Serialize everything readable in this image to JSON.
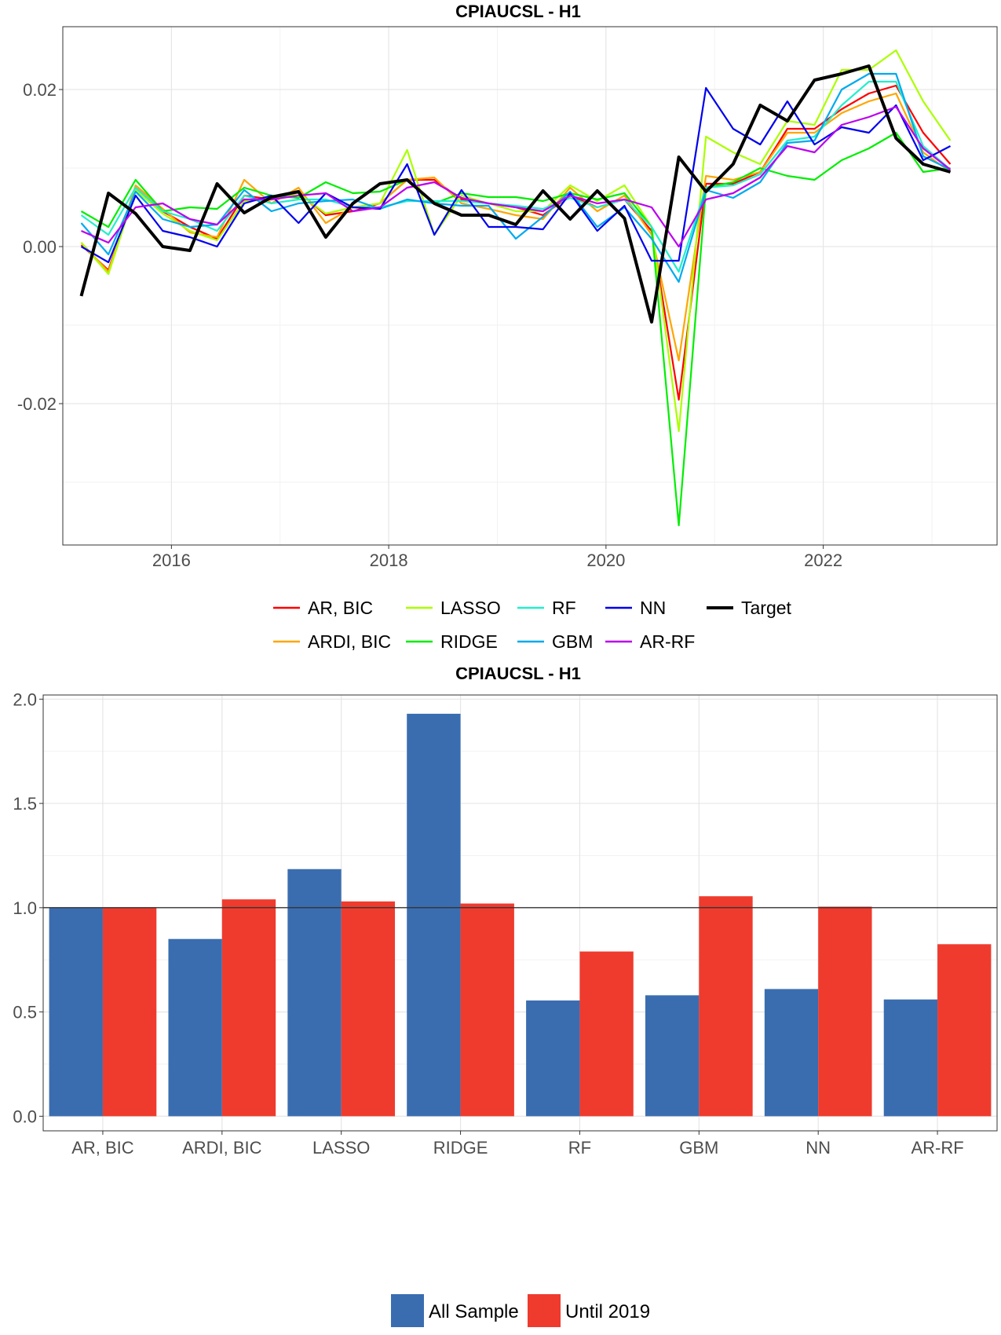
{
  "chart_data": [
    {
      "type": "line",
      "title": "CPIAUCSL - H1",
      "xlabel": "",
      "ylabel": "",
      "xlim": [
        2015.0,
        2023.6
      ],
      "ylim": [
        -0.038,
        0.028
      ],
      "xticks": [
        2016,
        2018,
        2020,
        2022
      ],
      "yticks": [
        0.02,
        0.0,
        -0.02
      ],
      "ytick_labels": [
        "0.02",
        "0.00",
        "-0.02"
      ],
      "grid": true,
      "legend_position": "bottom",
      "x": [
        2015.17,
        2015.42,
        2015.67,
        2015.92,
        2016.17,
        2016.42,
        2016.67,
        2016.92,
        2017.17,
        2017.42,
        2017.67,
        2017.92,
        2018.17,
        2018.42,
        2018.67,
        2018.92,
        2019.17,
        2019.42,
        2019.67,
        2019.92,
        2020.17,
        2020.42,
        2020.67,
        2020.92,
        2021.17,
        2021.42,
        2021.67,
        2021.92,
        2022.17,
        2022.42,
        2022.67,
        2022.92,
        2023.17
      ],
      "series": [
        {
          "name": "AR, BIC",
          "color": "#ff0000",
          "values": [
            0.0002,
            -0.003,
            0.0075,
            0.0045,
            0.0025,
            0.001,
            0.0065,
            0.006,
            0.007,
            0.004,
            0.0045,
            0.0055,
            0.0085,
            0.0085,
            0.006,
            0.0055,
            0.005,
            0.004,
            0.0065,
            0.005,
            0.006,
            0.002,
            -0.0195,
            0.008,
            0.008,
            0.0095,
            0.015,
            0.015,
            0.0175,
            0.0195,
            0.0205,
            0.0145,
            0.0105
          ]
        },
        {
          "name": "ARDI, BIC",
          "color": "#ffa500",
          "values": [
            0.0005,
            -0.0032,
            0.0078,
            0.0048,
            0.0018,
            0.0012,
            0.0085,
            0.0055,
            0.0075,
            0.003,
            0.005,
            0.0055,
            0.0085,
            0.0088,
            0.0055,
            0.0048,
            0.004,
            0.0035,
            0.0075,
            0.0045,
            0.0065,
            0.0015,
            -0.0145,
            0.009,
            0.0085,
            0.0095,
            0.0145,
            0.0145,
            0.017,
            0.0185,
            0.0195,
            0.012,
            0.0095
          ]
        },
        {
          "name": "LASSO",
          "color": "#aaff00",
          "values": [
            0.0005,
            -0.0035,
            0.0072,
            0.0042,
            0.002,
            0.0008,
            0.0058,
            0.006,
            0.0068,
            0.0042,
            0.005,
            0.0055,
            0.0123,
            0.0015,
            0.0065,
            0.0055,
            0.0045,
            0.0045,
            0.0078,
            0.0058,
            0.0078,
            0.0025,
            -0.0235,
            0.014,
            0.012,
            0.0105,
            0.016,
            0.0155,
            0.0225,
            0.0225,
            0.025,
            0.0185,
            0.0135
          ]
        },
        {
          "name": "RIDGE",
          "color": "#00ee00",
          "values": [
            0.0045,
            0.0025,
            0.0085,
            0.0045,
            0.005,
            0.0048,
            0.0075,
            0.0065,
            0.0062,
            0.0082,
            0.0068,
            0.007,
            0.0085,
            0.0055,
            0.0068,
            0.0063,
            0.0063,
            0.0058,
            0.0068,
            0.006,
            0.0068,
            0.0025,
            -0.0355,
            0.0075,
            0.0082,
            0.01,
            0.009,
            0.0085,
            0.011,
            0.0125,
            0.0145,
            0.0095,
            0.01
          ]
        },
        {
          "name": "RF",
          "color": "#22eecc",
          "values": [
            0.004,
            0.0015,
            0.0075,
            0.0045,
            0.0035,
            0.002,
            0.0065,
            0.0055,
            0.006,
            0.006,
            0.005,
            0.005,
            0.0058,
            0.0058,
            0.0058,
            0.0055,
            0.0052,
            0.0048,
            0.0062,
            0.005,
            0.006,
            0.0025,
            -0.0032,
            0.0075,
            0.0078,
            0.0092,
            0.0135,
            0.014,
            0.018,
            0.021,
            0.021,
            0.0128,
            0.0098
          ]
        },
        {
          "name": "GBM",
          "color": "#00aaee",
          "values": [
            0.003,
            -0.001,
            0.007,
            0.0035,
            0.0025,
            0.0028,
            0.0072,
            0.0045,
            0.0055,
            0.0058,
            0.006,
            0.0048,
            0.006,
            0.0055,
            0.0052,
            0.0052,
            0.001,
            0.0038,
            0.007,
            0.0025,
            0.005,
            0.001,
            -0.0045,
            0.0072,
            0.0062,
            0.0082,
            0.0132,
            0.0135,
            0.02,
            0.022,
            0.022,
            0.0115,
            0.0098
          ]
        },
        {
          "name": "NN",
          "color": "#0000ee",
          "values": [
            0.0,
            -0.002,
            0.0065,
            0.002,
            0.0012,
            0.0,
            0.0055,
            0.0065,
            0.003,
            0.0068,
            0.005,
            0.0048,
            0.0105,
            0.0015,
            0.0072,
            0.0025,
            0.0025,
            0.0022,
            0.0068,
            0.002,
            0.0052,
            -0.0018,
            -0.0018,
            0.0202,
            0.015,
            0.013,
            0.0185,
            0.013,
            0.0152,
            0.0145,
            0.018,
            0.011,
            0.0128
          ]
        },
        {
          "name": "AR-RF",
          "color": "#bb00ee",
          "values": [
            0.002,
            0.0005,
            0.005,
            0.0055,
            0.0035,
            0.0028,
            0.006,
            0.006,
            0.0065,
            0.0068,
            0.0045,
            0.005,
            0.0075,
            0.0082,
            0.0062,
            0.0055,
            0.005,
            0.0045,
            0.0065,
            0.0055,
            0.006,
            0.005,
            0.0,
            0.006,
            0.0068,
            0.0088,
            0.0128,
            0.012,
            0.0155,
            0.0165,
            0.0178,
            0.0125,
            0.0098
          ]
        },
        {
          "name": "Target",
          "color": "#000000",
          "values": [
            -0.0063,
            0.0068,
            0.0042,
            0.0,
            -0.0005,
            0.008,
            0.0043,
            0.0063,
            0.007,
            0.0012,
            0.0055,
            0.008,
            0.0085,
            0.0055,
            0.004,
            0.004,
            0.0028,
            0.0071,
            0.0035,
            0.0071,
            0.0036,
            -0.0096,
            0.0114,
            0.007,
            0.0105,
            0.018,
            0.016,
            0.0212,
            0.022,
            0.023,
            0.0138,
            0.0105,
            0.0095
          ]
        }
      ]
    },
    {
      "type": "bar",
      "title": "CPIAUCSL - H1",
      "xlabel": "",
      "ylabel": "",
      "categories": [
        "AR, BIC",
        "ARDI, BIC",
        "LASSO",
        "RIDGE",
        "RF",
        "GBM",
        "NN",
        "AR-RF"
      ],
      "ylim": [
        -0.07,
        2.02
      ],
      "yticks": [
        0.0,
        0.5,
        1.0,
        1.5,
        2.0
      ],
      "ytick_labels": [
        "0.0",
        "0.5",
        "1.0",
        "1.5",
        "2.0"
      ],
      "reference_line": 1.0,
      "grid": true,
      "legend_position": "bottom",
      "series": [
        {
          "name": "All Sample",
          "color": "#3a6db0",
          "values": [
            1.0,
            0.85,
            1.185,
            1.93,
            0.555,
            0.58,
            0.61,
            0.56
          ]
        },
        {
          "name": "Until 2019",
          "color": "#ee3b2e",
          "values": [
            1.0,
            1.04,
            1.03,
            1.02,
            0.79,
            1.055,
            1.005,
            0.825
          ]
        }
      ]
    }
  ]
}
